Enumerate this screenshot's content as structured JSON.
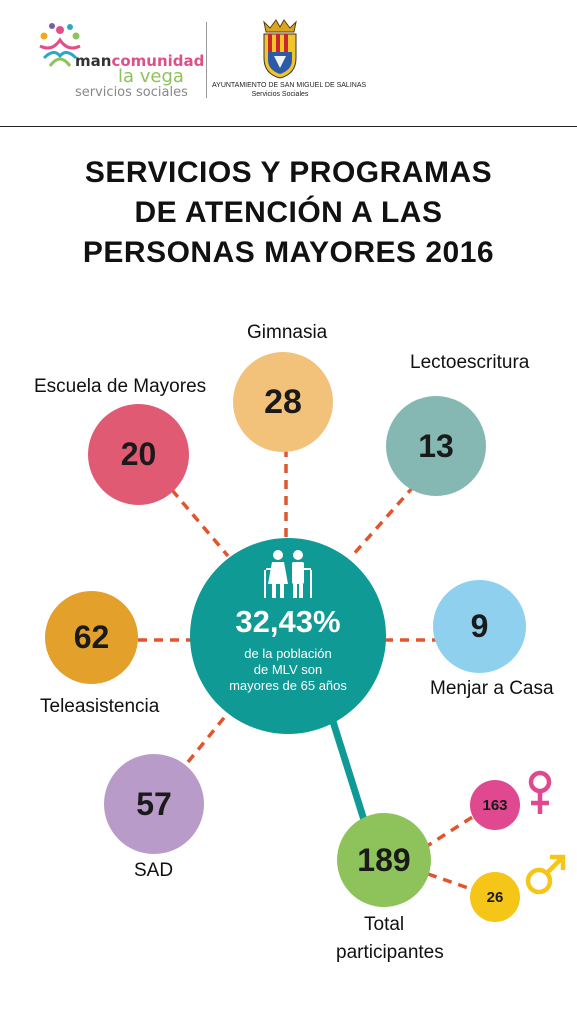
{
  "header": {
    "org_logo": {
      "part1": "man",
      "part2": "comunidad",
      "line2": "la vega",
      "line3": "servicios sociales"
    },
    "ayuntamiento": {
      "name": "AYUNTAMIENTO DE SAN MIGUEL DE SALINAS",
      "dept": "Servicios Sociales"
    }
  },
  "title": {
    "line1": "SERVICIOS Y PROGRAMAS",
    "line2": "DE ATENCIÓN A LAS",
    "line3": "PERSONAS MAYORES 2016"
  },
  "center": {
    "percent": "32,43%",
    "desc1": "de la población",
    "desc2": "de MLV son",
    "desc3": "mayores de 65 años",
    "icon": "elderly-couple-icon",
    "color": "#0f9a96"
  },
  "programs": {
    "gimnasia": {
      "label": "Gimnasia",
      "value": "28",
      "color": "#f2c27a"
    },
    "escuela": {
      "label": "Escuela de Mayores",
      "value": "20",
      "color": "#e05a73"
    },
    "lecto": {
      "label": "Lectoescritura",
      "value": "13",
      "color": "#86b8b3"
    },
    "tele": {
      "label": "Teleasistencia",
      "value": "62",
      "color": "#e3a02a"
    },
    "menjar": {
      "label": "Menjar a Casa",
      "value": "9",
      "color": "#8fd0ee"
    },
    "sad": {
      "label": "SAD",
      "value": "57",
      "color": "#b89bc9"
    }
  },
  "total": {
    "label1": "Total",
    "label2": "participantes",
    "value": "189",
    "color": "#8ec25a",
    "female": {
      "value": "163",
      "color": "#e0488f",
      "icon": "female-symbol-icon"
    },
    "male": {
      "value": "26",
      "color": "#f5c518",
      "icon": "male-symbol-icon"
    }
  },
  "colors": {
    "connector": "#e0552d"
  }
}
